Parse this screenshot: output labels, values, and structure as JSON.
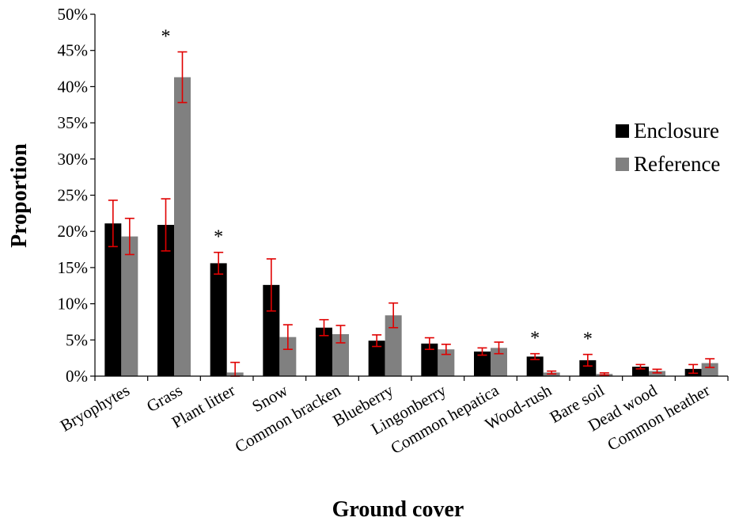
{
  "chart_data": {
    "type": "bar",
    "xlabel": "Ground cover",
    "ylabel": "Proportion",
    "ylim": [
      0,
      50
    ],
    "yticks": [
      0,
      5,
      10,
      15,
      20,
      25,
      30,
      35,
      40,
      45,
      50
    ],
    "y_tick_suffix": "%",
    "legend_position": "right",
    "error_bar_color": "#e00000",
    "categories": [
      "Bryophytes",
      "Grass",
      "Plant litter",
      "Snow",
      "Common bracken",
      "Blueberry",
      "Lingonberry",
      "Common hepatica",
      "Wood-rush",
      "Bare soil",
      "Dead wood",
      "Common heather"
    ],
    "series": [
      {
        "name": "Enclosure",
        "color": "#000000",
        "values": [
          21.1,
          20.9,
          15.6,
          12.6,
          6.7,
          4.9,
          4.5,
          3.4,
          2.7,
          2.2,
          1.3,
          1.0
        ],
        "errors": [
          3.2,
          3.6,
          1.5,
          3.6,
          1.1,
          0.8,
          0.8,
          0.5,
          0.4,
          0.8,
          0.3,
          0.6
        ]
      },
      {
        "name": "Reference",
        "color": "#808080",
        "values": [
          19.3,
          41.3,
          0.5,
          5.4,
          5.8,
          8.4,
          3.7,
          3.9,
          0.5,
          0.3,
          0.7,
          1.8
        ],
        "errors": [
          2.5,
          3.5,
          1.4,
          1.7,
          1.2,
          1.7,
          0.7,
          0.8,
          0.2,
          0.15,
          0.25,
          0.6
        ]
      }
    ],
    "annotations": [
      {
        "category_index": 1,
        "text": "*"
      },
      {
        "category_index": 2,
        "text": "*"
      },
      {
        "category_index": 8,
        "text": "*"
      },
      {
        "category_index": 9,
        "text": "*"
      }
    ]
  }
}
